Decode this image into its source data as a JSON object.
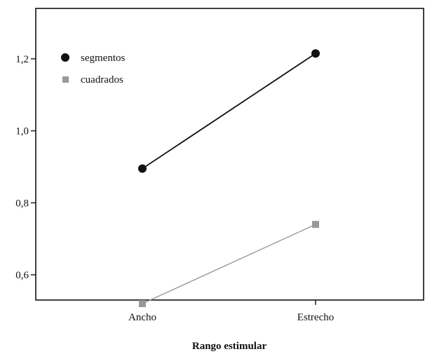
{
  "chart_data": {
    "type": "line",
    "title": "",
    "xlabel": "Rango estimular",
    "ylabel": "",
    "categories": [
      "Ancho",
      "Estrecho"
    ],
    "ylim": [
      0.53,
      1.34
    ],
    "yticks": [
      0.6,
      0.8,
      1.0,
      1.2
    ],
    "ytick_labels": [
      "0,6",
      "0,8",
      "1,0",
      "1,2"
    ],
    "grid": false,
    "legend_position": "top-left",
    "series": [
      {
        "name": "segmentos",
        "values": [
          0.895,
          1.215
        ],
        "color": "#111111",
        "marker": "circle"
      },
      {
        "name": "cuadrados",
        "values": [
          0.52,
          0.74
        ],
        "color": "#999999",
        "marker": "square"
      }
    ]
  }
}
